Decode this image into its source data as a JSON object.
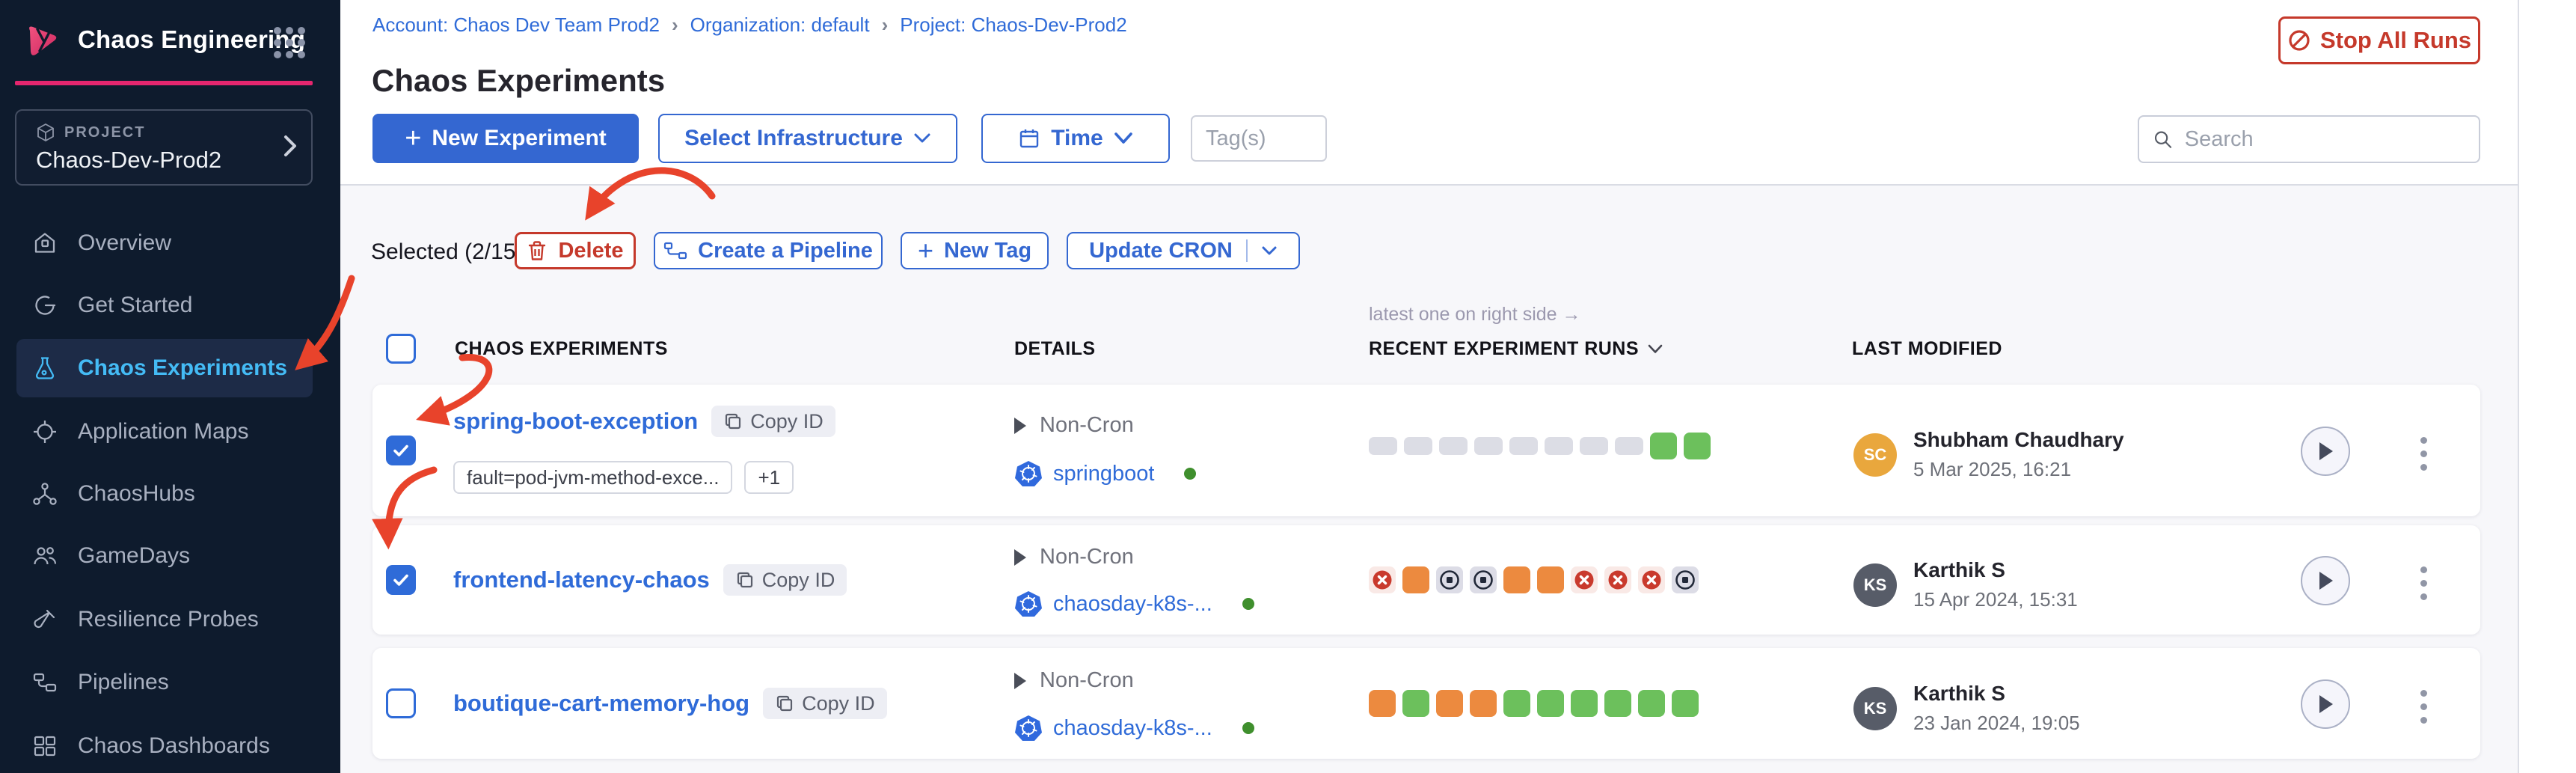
{
  "colors": {
    "accent_blue": "#3467d1",
    "link_blue": "#2f6bd8",
    "danger_red": "#c5392b",
    "annotation_red": "#e8432b",
    "brand_pink": "#e5266e",
    "run_passed_green": "#6cc05c",
    "run_warn_orange": "#ec8a3f",
    "run_failed_red": "#c93a2d",
    "run_queued_gray": "#dcdde5",
    "avatar_orange": "#e9a73d",
    "avatar_slate": "#575c68",
    "sidebar_bg": "#0e1b2d",
    "active_item_blue": "#44bbf5"
  },
  "sidebar": {
    "app_title": "Chaos Engineering",
    "project_label": "PROJECT",
    "project_name": "Chaos-Dev-Prod2",
    "items": [
      {
        "label": "Overview"
      },
      {
        "label": "Get Started"
      },
      {
        "label": "Chaos Experiments"
      },
      {
        "label": "Application Maps"
      },
      {
        "label": "ChaosHubs"
      },
      {
        "label": "GameDays"
      },
      {
        "label": "Resilience Probes"
      },
      {
        "label": "Pipelines"
      },
      {
        "label": "Chaos Dashboards"
      }
    ]
  },
  "header": {
    "breadcrumb": [
      {
        "label": "Account: Chaos Dev Team Prod2"
      },
      {
        "label": "Organization: default"
      },
      {
        "label": "Project: Chaos-Dev-Prod2"
      }
    ],
    "breadcrumb_separator": "›",
    "title": "Chaos Experiments",
    "stop_all_runs": "Stop All Runs"
  },
  "toolbar": {
    "new_experiment": "New Experiment",
    "new_experiment_plus": "+",
    "select_infrastructure": "Select Infrastructure",
    "time": "Time",
    "tags_placeholder": "Tag(s)",
    "search_placeholder": "Search"
  },
  "selection": {
    "selected_text": "Selected (2/15)",
    "delete": "Delete",
    "create_pipeline": "Create a Pipeline",
    "new_tag": "New Tag",
    "new_tag_plus": "+",
    "update_cron": "Update CRON"
  },
  "table": {
    "headers": {
      "experiments": "CHAOS EXPERIMENTS",
      "details": "DETAILS",
      "recent_runs": "RECENT EXPERIMENT RUNS",
      "last_modified": "LAST MODIFIED"
    },
    "runs_note": "latest one on right side →",
    "rows": [
      {
        "checked": "true",
        "name": "spring-boot-exception",
        "copy_id": "Copy ID",
        "tags": [
          "fault=pod-jvm-method-exce...",
          "+1"
        ],
        "cron": "Non-Cron",
        "infra": "springboot",
        "runs": [
          "queued",
          "queued",
          "queued",
          "queued",
          "queued",
          "queued",
          "queued",
          "queued",
          "passed",
          "passed"
        ],
        "modifier": {
          "initials": "SC",
          "name": "Shubham Chaudhary",
          "date": "5 Mar 2025, 16:21"
        }
      },
      {
        "checked": "true",
        "name": "frontend-latency-chaos",
        "copy_id": "Copy ID",
        "cron": "Non-Cron",
        "infra": "chaosday-k8s-...",
        "runs": [
          "failed",
          "warn",
          "stopped",
          "stopped",
          "warn",
          "warn",
          "failed",
          "failed",
          "failed",
          "stopped"
        ],
        "modifier": {
          "initials": "KS",
          "name": "Karthik S",
          "date": "15 Apr 2024, 15:31"
        }
      },
      {
        "checked": "false",
        "name": "boutique-cart-memory-hog",
        "copy_id": "Copy ID",
        "cron": "Non-Cron",
        "infra": "chaosday-k8s-...",
        "runs": [
          "warn",
          "passed",
          "warn",
          "warn",
          "passed",
          "passed",
          "passed",
          "passed",
          "passed",
          "passed"
        ],
        "modifier": {
          "initials": "KS",
          "name": "Karthik S",
          "date": "23 Jan 2024, 19:05"
        }
      }
    ]
  }
}
